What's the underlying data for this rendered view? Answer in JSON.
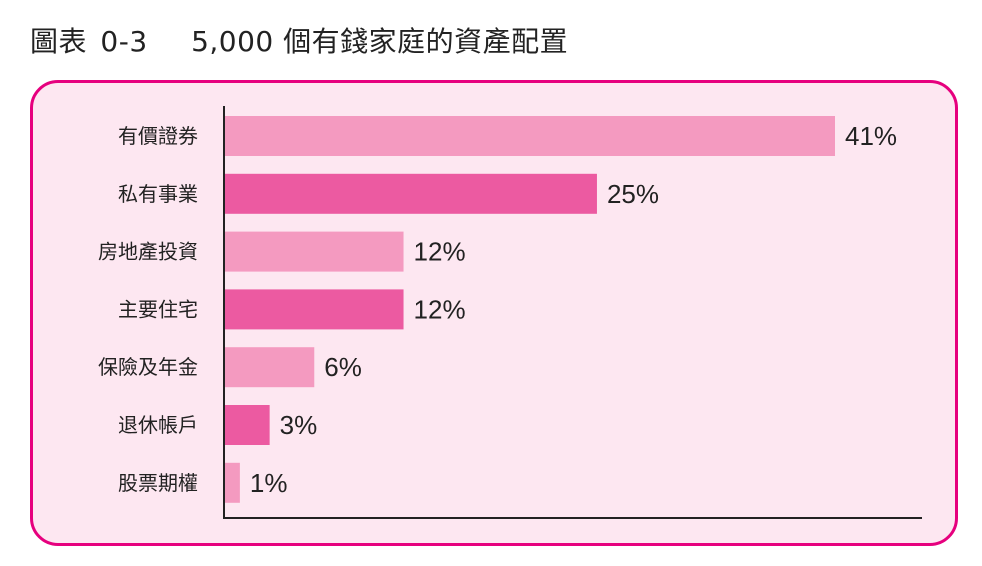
{
  "title": {
    "prefix": "圖表",
    "number": "0-3",
    "text": "5,000 個有錢家庭的資產配置"
  },
  "chart_data": {
    "type": "bar",
    "orientation": "horizontal",
    "categories": [
      "有價證券",
      "私有事業",
      "房地產投資",
      "主要住宅",
      "保險及年金",
      "退休帳戶",
      "股票期權"
    ],
    "values": [
      41,
      25,
      12,
      12,
      6,
      3,
      1
    ],
    "value_labels": [
      "41%",
      "25%",
      "12%",
      "12%",
      "6%",
      "3%",
      "1%"
    ],
    "unit": "%",
    "xlim": [
      0,
      41
    ],
    "grid": false,
    "legend": "none"
  },
  "colors": {
    "panel_bg": "#fde7f1",
    "panel_border": "#e6007e",
    "bar_light": "#f49ac0",
    "bar_dark": "#ec5aa1",
    "axis": "#222222"
  }
}
